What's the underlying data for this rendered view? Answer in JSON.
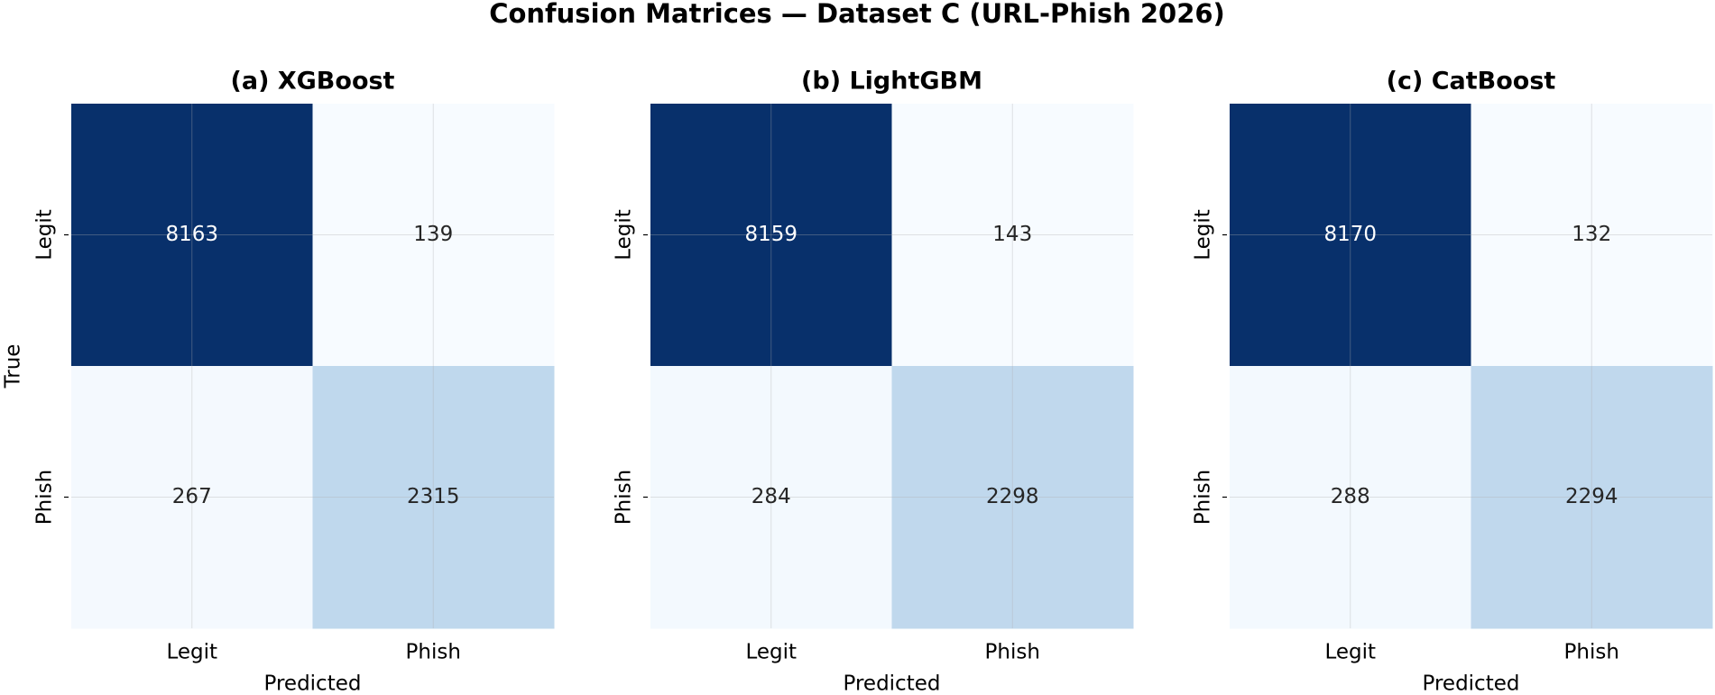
{
  "title": "Confusion Matrices — Dataset C (URL-Phish 2026)",
  "chart_data": [
    {
      "type": "heatmap",
      "title": "(a) XGBoost",
      "x_categories": [
        "Legit",
        "Phish"
      ],
      "y_categories": [
        "Legit",
        "Phish"
      ],
      "values": [
        [
          8163,
          139
        ],
        [
          267,
          2315
        ]
      ],
      "xlabel": "Predicted",
      "ylabel": "True",
      "colormap": "Blues",
      "grid": true
    },
    {
      "type": "heatmap",
      "title": "(b) LightGBM",
      "x_categories": [
        "Legit",
        "Phish"
      ],
      "y_categories": [
        "Legit",
        "Phish"
      ],
      "values": [
        [
          8159,
          143
        ],
        [
          284,
          2298
        ]
      ],
      "xlabel": "Predicted",
      "colormap": "Blues",
      "grid": true
    },
    {
      "type": "heatmap",
      "title": "(c) CatBoost",
      "x_categories": [
        "Legit",
        "Phish"
      ],
      "y_categories": [
        "Legit",
        "Phish"
      ],
      "values": [
        [
          8170,
          132
        ],
        [
          288,
          2294
        ]
      ],
      "xlabel": "Predicted",
      "colormap": "Blues",
      "grid": true
    }
  ]
}
